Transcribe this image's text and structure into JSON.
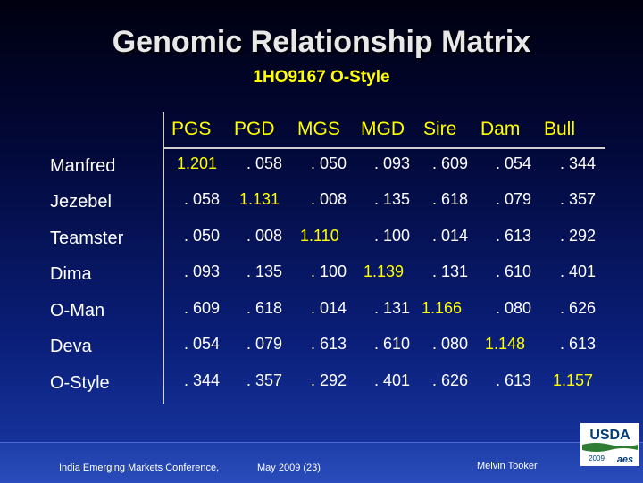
{
  "slide": {
    "title": "Genomic Relationship Matrix",
    "subtitle": "1HO9167 O-Style"
  },
  "matrix": {
    "columns": [
      "PGS",
      "PGD",
      "MGS",
      "MGD",
      "Sire",
      "Dam",
      "Bull"
    ],
    "rows": [
      {
        "label": "Manfred",
        "values": [
          "1.201",
          ". 058",
          ". 050",
          ". 093",
          ". 609",
          ". 054",
          ". 344"
        ]
      },
      {
        "label": "Jezebel",
        "values": [
          ". 058",
          "1.131",
          ". 008",
          ". 135",
          ". 618",
          ". 079",
          ". 357"
        ]
      },
      {
        "label": "Teamster",
        "values": [
          ". 050",
          ". 008",
          "1.110",
          ". 100",
          ". 014",
          ". 613",
          ". 292"
        ]
      },
      {
        "label": "Dima",
        "values": [
          ". 093",
          ". 135",
          ". 100",
          "1.139",
          ". 131",
          ". 610",
          ". 401"
        ]
      },
      {
        "label": "O-Man",
        "values": [
          ". 609",
          ". 618",
          ". 014",
          ". 131",
          "1.166",
          ". 080",
          ". 626"
        ]
      },
      {
        "label": "Deva",
        "values": [
          ". 054",
          ". 079",
          ". 613",
          ". 610",
          ". 080",
          "1.148",
          ". 613"
        ]
      },
      {
        "label": "O-Style",
        "values": [
          ". 344",
          ". 357",
          ". 292",
          ". 401",
          ". 626",
          ". 613",
          "1.157"
        ]
      }
    ]
  },
  "footer": {
    "conference": "India Emerging Markets Conference,",
    "date": "May 2009 (23)",
    "author": "Melvin Tooker"
  },
  "logo": {
    "text": "USDA",
    "year": "2009",
    "mark": "aes"
  },
  "colors": {
    "title": "#e8e8e8",
    "accent": "#ffff00",
    "text": "#ffffff",
    "logo_green": "#2e7d32"
  }
}
